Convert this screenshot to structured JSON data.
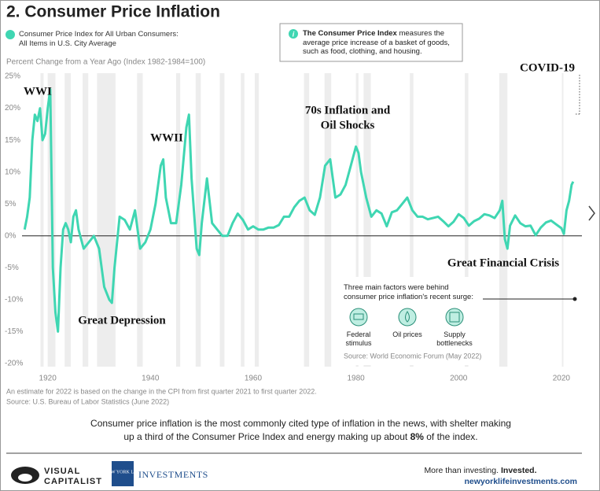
{
  "header": {
    "title": "2. Consumer Price Inflation"
  },
  "info_box": {
    "lead": "The Consumer Price Index",
    "text": "measures the average price increase of a basket of goods, such as food, clothing, and housing."
  },
  "chart_data": {
    "type": "line",
    "y_label": "Percent Change from a Year Ago (Index 1982-1984=100)",
    "x": [
      1915.5,
      1916,
      1916.5,
      1917,
      1917.5,
      1918,
      1918.5,
      1919,
      1919.5,
      1920,
      1920.5,
      1921,
      1921.5,
      1922,
      1922.5,
      1923,
      1923.5,
      1924,
      1924.5,
      1925,
      1925.5,
      1926,
      1927,
      1928,
      1929,
      1930,
      1931,
      1932,
      1932.5,
      1933,
      1934,
      1935,
      1936,
      1937,
      1938,
      1939,
      1940,
      1941,
      1942,
      1942.5,
      1943,
      1944,
      1945,
      1946,
      1947,
      1947.5,
      1948,
      1949,
      1949.5,
      1950,
      1951,
      1952,
      1953,
      1954,
      1955,
      1956,
      1957,
      1958,
      1959,
      1960,
      1961,
      1962,
      1963,
      1964,
      1965,
      1966,
      1967,
      1968,
      1969,
      1970,
      1971,
      1972,
      1973,
      1974,
      1975,
      1975.5,
      1976,
      1977,
      1978,
      1979,
      1980,
      1980.5,
      1981,
      1982,
      1983,
      1984,
      1985,
      1986,
      1987,
      1988,
      1989,
      1990,
      1991,
      1992,
      1993,
      1994,
      1995,
      1996,
      1997,
      1998,
      1999,
      2000,
      2001,
      2002,
      2003,
      2004,
      2005,
      2006,
      2007,
      2008,
      2008.5,
      2009,
      2009.5,
      2010,
      2011,
      2012,
      2013,
      2014,
      2015,
      2016,
      2017,
      2018,
      2019,
      2020,
      2020.5,
      2021,
      2021.5,
      2022,
      2022.3
    ],
    "series": [
      {
        "name": "Consumer Price Index for All Urban Consumers:\nAll Items in U.S. City Average",
        "color": "#3fd6b2",
        "values": [
          1,
          3,
          6,
          15,
          19,
          18,
          20,
          15,
          16,
          20,
          23,
          -5,
          -12,
          -15,
          -5,
          1,
          2,
          1,
          -1,
          3,
          4,
          1,
          -2,
          -1,
          0,
          -2,
          -8,
          -10,
          -10.5,
          -5,
          3,
          2.5,
          1,
          4,
          -2,
          -1,
          1,
          5,
          11,
          12,
          6,
          2,
          2,
          8,
          17,
          19,
          9,
          -2,
          -3,
          2,
          9,
          2,
          1,
          0,
          0,
          2,
          3.5,
          2.5,
          1,
          1.5,
          1,
          1,
          1.3,
          1.3,
          1.7,
          3,
          3,
          4.5,
          5.5,
          6,
          4,
          3.3,
          6,
          11,
          12,
          9,
          6,
          6.5,
          8,
          11,
          14,
          13,
          10,
          6,
          3,
          4,
          3.5,
          1.5,
          3.7,
          4,
          5,
          6,
          4,
          3,
          3,
          2.6,
          2.8,
          3,
          2.3,
          1.5,
          2.2,
          3.4,
          2.8,
          1.6,
          2.3,
          2.7,
          3.4,
          3.2,
          2.8,
          4,
          5.5,
          -0.5,
          -2,
          1.6,
          3.2,
          2,
          1.5,
          1.6,
          0.1,
          1.3,
          2.1,
          2.4,
          1.8,
          1.2,
          0.3,
          4,
          5.5,
          8,
          8.5
        ]
      }
    ],
    "shaded": [
      [
        1918.6,
        1919.2
      ],
      [
        1920,
        1921.5
      ],
      [
        1923.3,
        1924.5
      ],
      [
        1926.8,
        1927.9
      ],
      [
        1929.6,
        1933.2
      ],
      [
        1937.4,
        1938.5
      ],
      [
        1945,
        1945.8
      ],
      [
        1948.8,
        1949.8
      ],
      [
        1953.5,
        1954.4
      ],
      [
        1957.6,
        1958.3
      ],
      [
        1960.3,
        1961.1
      ],
      [
        1969.9,
        1970.9
      ],
      [
        1973.9,
        1975.2
      ],
      [
        1980,
        1980.5
      ],
      [
        1981.5,
        1982.9
      ],
      [
        1990.5,
        1991.2
      ],
      [
        2001.2,
        2001.9
      ],
      [
        2007.9,
        2009.5
      ],
      [
        2020.1,
        2020.4
      ]
    ],
    "xlim": [
      1915,
      2024
    ],
    "ylim": [
      -20.5,
      25.5
    ],
    "xticks": [
      1920,
      1940,
      1960,
      1980,
      2000,
      2020
    ],
    "yticks": [
      {
        "value": 25,
        "label": "25%"
      },
      {
        "value": 20,
        "label": "20%"
      },
      {
        "value": 15,
        "label": "15%"
      },
      {
        "value": 10,
        "label": "10%"
      },
      {
        "value": 5,
        "label": "5%"
      },
      {
        "value": 0,
        "label": "0%"
      },
      {
        "value": -5,
        "label": "-5%"
      },
      {
        "value": -10,
        "label": "-10%"
      },
      {
        "value": -15,
        "label": "-15%"
      },
      {
        "value": -20,
        "label": "-20%"
      }
    ],
    "grid": false,
    "annotations": [
      "WWI",
      "Great Depression",
      "WWII",
      "70s Inflation and",
      "Oil Shocks",
      "COVID-19",
      "Great Financial Crisis"
    ]
  },
  "inset": {
    "heading": "Three main factors were behind\nconsumer price inflation's recent surge:",
    "factors": [
      "Federal\nstimulus",
      "Oil prices",
      "Supply\nbottlenecks"
    ],
    "source": "Source: World Economic Forum (May 2022)"
  },
  "notes": [
    "An estimate for 2022 is based on the change in the CPI from first quarter 2021 to first quarter 2022.",
    "Source: U.S. Bureau of Labor Statistics (June 2022)"
  ],
  "summary": [
    "Consumer price inflation is the most commonly cited type of inflation in the news, with shelter making up a third of the Consumer Price Index and energy making up about ",
    "8%",
    " of the index."
  ],
  "footer": {
    "brand1": "VISUAL",
    "brand2": "CAPITALIST",
    "nyl": "NEW YORK LIFE",
    "investments": "INVESTMENTS",
    "tag1": "More than investing.",
    "tag2": "Invested.",
    "url": "newyorklifeinvestments.com"
  }
}
